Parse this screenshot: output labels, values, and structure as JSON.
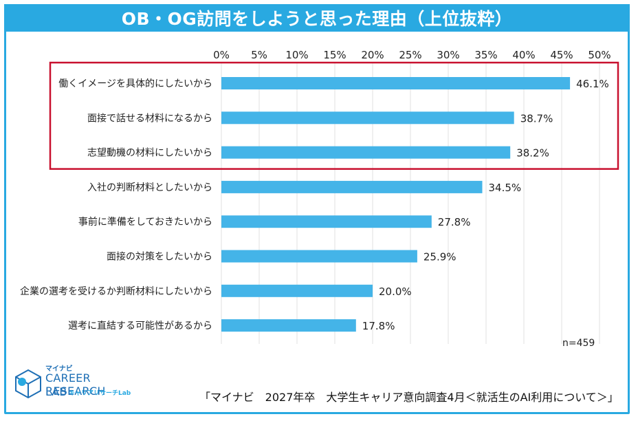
{
  "title": "OB・OG訪問をしようと思った理由（上位抜粋）",
  "note": "n=459",
  "source": "「マイナビ　2027年卒　大学生キャリア意向調査4月＜就活生のAI利用について＞」",
  "logo": {
    "top": "マイナビ",
    "line1": "CAREER RESEARCH",
    "line2": "LAB",
    "sub": "キャリアリサーチLab"
  },
  "colors": {
    "bar": "#44b4e8",
    "frame": "#29a9e1",
    "highlight": "#c8102e",
    "grid": "#e0e0e0"
  },
  "chart_data": {
    "type": "bar",
    "orientation": "horizontal",
    "categories": [
      "働くイメージを具体的にしたいから",
      "面接で話せる材料になるから",
      "志望動機の材料にしたいから",
      "入社の判断材料としたいから",
      "事前に準備をしておきたいから",
      "面接の対策をしたいから",
      "企業の選考を受けるか判断材料にしたいから",
      "選考に直結する可能性があるから"
    ],
    "values": [
      46.1,
      38.7,
      38.2,
      34.5,
      27.8,
      25.9,
      20.0,
      17.8
    ],
    "value_labels": [
      "46.1%",
      "38.7%",
      "38.2%",
      "34.5%",
      "27.8%",
      "25.9%",
      "20.0%",
      "17.8%"
    ],
    "x_ticks": [
      "0%",
      "5%",
      "10%",
      "15%",
      "20%",
      "25%",
      "30%",
      "35%",
      "40%",
      "45%",
      "50%"
    ],
    "xlim": [
      0,
      50
    ],
    "axis_position": "top",
    "grid": true,
    "highlighted_categories": [
      0,
      1,
      2
    ]
  }
}
